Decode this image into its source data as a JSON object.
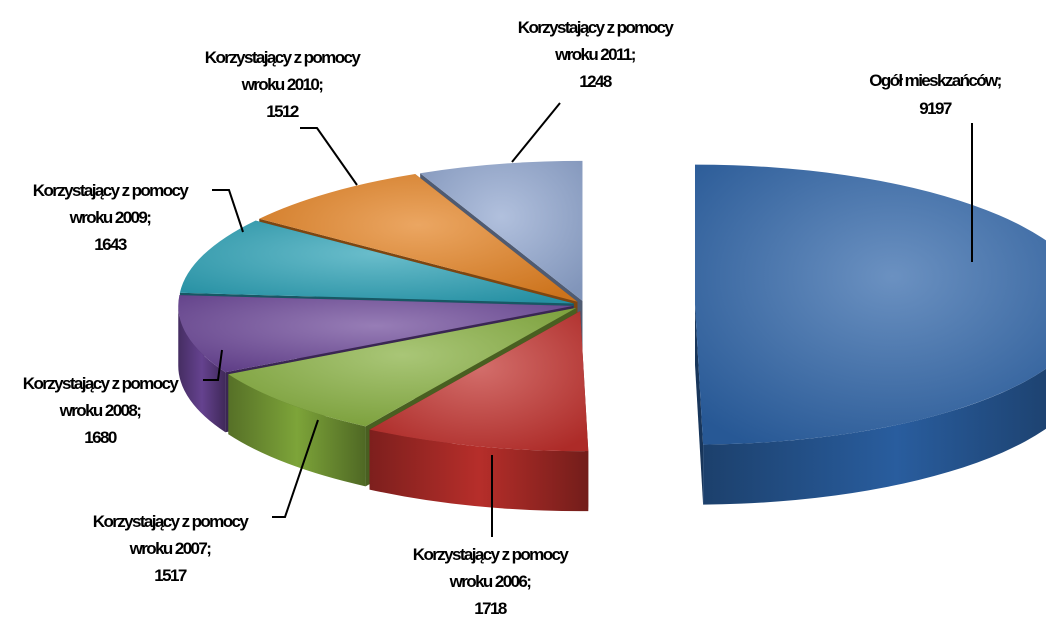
{
  "chart_data": {
    "type": "pie",
    "variant": "3d-exploded",
    "title": "",
    "slices": [
      {
        "label": "Ogół mieskzańców;",
        "value": 9197,
        "value_text": "9197",
        "color": "#2b62a6",
        "label_lines": [
          "Ogół mieskzańców;",
          "9197"
        ]
      },
      {
        "label": "Korzystający z pomocy wroku 2006;",
        "value": 1718,
        "value_text": "1718",
        "color": "#c0302c",
        "label_lines": [
          "Korzystający z pomocy",
          "wroku 2006;",
          "1718"
        ]
      },
      {
        "label": "Korzystający z pomocy wroku 2007;",
        "value": 1517,
        "value_text": "1517",
        "color": "#84ad3c",
        "label_lines": [
          "Korzystający z pomocy",
          "wroku  2007;",
          "1517"
        ]
      },
      {
        "label": "Korzystający z pomocy wroku 2008;",
        "value": 1680,
        "value_text": "1680",
        "color": "#6a4596",
        "label_lines": [
          "Korzystający z pomocy",
          "wroku 2008;",
          "1680"
        ]
      },
      {
        "label": "Korzystający z pomocy wroku 2009;",
        "value": 1643,
        "value_text": "1643",
        "color": "#2aa0b5",
        "label_lines": [
          "Korzystający z pomocy",
          "wroku 2009;",
          "1643"
        ]
      },
      {
        "label": "Korzystający z pomocy wroku 2010;",
        "value": 1512,
        "value_text": "1512",
        "color": "#e3801f",
        "label_lines": [
          "Korzystający z pomocy",
          "wroku 2010;",
          "1512"
        ]
      },
      {
        "label": "Korzystający z pomocy wroku 2011;",
        "value": 1248,
        "value_text": "1248",
        "color": "#8fa5cf",
        "label_lines": [
          "Korzystający z pomocy",
          "wroku 2011;",
          "1248"
        ]
      }
    ],
    "legend": "none"
  }
}
